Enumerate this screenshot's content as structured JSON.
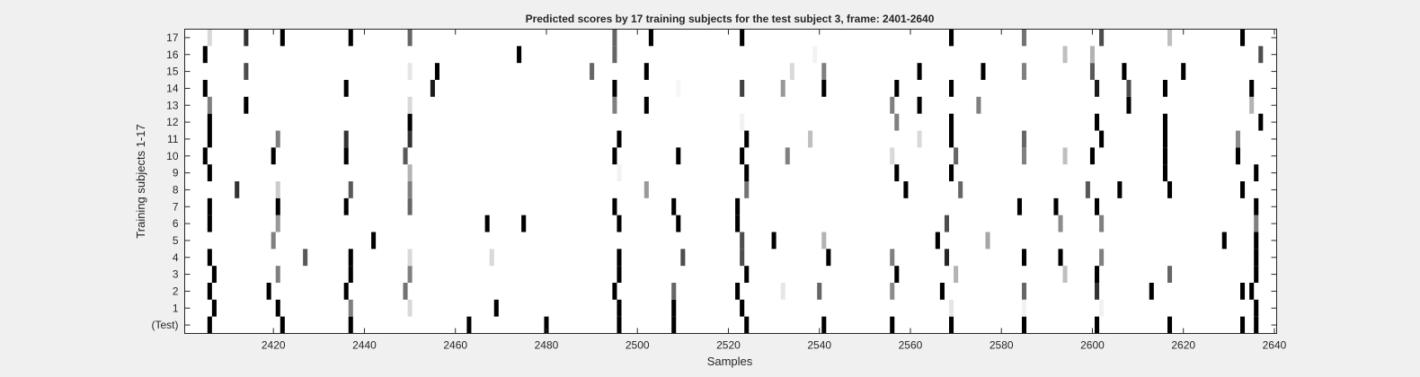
{
  "chart_data": {
    "type": "heatmap",
    "title": "Predicted scores by 17 training subjects for the test subject 3, frame: 2401-2640",
    "xlabel": "Samples",
    "ylabel": "Training subjects 1-17",
    "xlim": [
      2401,
      2640
    ],
    "xticks": [
      2420,
      2440,
      2460,
      2480,
      2500,
      2520,
      2540,
      2560,
      2580,
      2600,
      2620,
      2640
    ],
    "rows": [
      "(Test)",
      "1",
      "2",
      "3",
      "4",
      "5",
      "6",
      "7",
      "8",
      "9",
      "10",
      "11",
      "12",
      "13",
      "14",
      "15",
      "16",
      "17"
    ],
    "colormap": "gray",
    "background": "#ffffff",
    "cells": [
      {
        "row": "(Test)",
        "marks": [
          [
            2406,
            0
          ],
          [
            2422,
            0
          ],
          [
            2437,
            0
          ],
          [
            2463,
            0
          ],
          [
            2480,
            0
          ],
          [
            2496,
            0
          ],
          [
            2508,
            0
          ],
          [
            2524,
            0
          ],
          [
            2541,
            0
          ],
          [
            2556,
            0
          ],
          [
            2569,
            0
          ],
          [
            2585,
            0
          ],
          [
            2601,
            0
          ],
          [
            2617,
            0
          ],
          [
            2633,
            0
          ],
          [
            2636,
            0
          ]
        ]
      },
      {
        "row": "1",
        "marks": [
          [
            2407,
            0
          ],
          [
            2421,
            0
          ],
          [
            2437,
            0.5
          ],
          [
            2450,
            0.85
          ],
          [
            2469,
            0
          ],
          [
            2496,
            0
          ],
          [
            2508,
            0
          ],
          [
            2523,
            0
          ],
          [
            2569,
            0.9
          ],
          [
            2585,
            0.95
          ],
          [
            2602,
            0.95
          ],
          [
            2636,
            0
          ]
        ]
      },
      {
        "row": "2",
        "marks": [
          [
            2406,
            0
          ],
          [
            2419,
            0
          ],
          [
            2436,
            0
          ],
          [
            2449,
            0.45
          ],
          [
            2495,
            0
          ],
          [
            2508,
            0.4
          ],
          [
            2522,
            0
          ],
          [
            2532,
            0.9
          ],
          [
            2540,
            0.4
          ],
          [
            2556,
            0.55
          ],
          [
            2567,
            0
          ],
          [
            2585,
            0.4
          ],
          [
            2601,
            0.2
          ],
          [
            2613,
            0
          ],
          [
            2633,
            0
          ],
          [
            2635,
            0
          ]
        ]
      },
      {
        "row": "3",
        "marks": [
          [
            2407,
            0
          ],
          [
            2421,
            0.5
          ],
          [
            2437,
            0
          ],
          [
            2450,
            0.5
          ],
          [
            2496,
            0
          ],
          [
            2524,
            0
          ],
          [
            2557,
            0
          ],
          [
            2570,
            0.7
          ],
          [
            2594,
            0.75
          ],
          [
            2601,
            0
          ],
          [
            2617,
            0.4
          ],
          [
            2636,
            0
          ]
        ]
      },
      {
        "row": "4",
        "marks": [
          [
            2406,
            0
          ],
          [
            2427,
            0.35
          ],
          [
            2437,
            0
          ],
          [
            2450,
            0.85
          ],
          [
            2468,
            0.85
          ],
          [
            2496,
            0
          ],
          [
            2510,
            0.3
          ],
          [
            2523,
            0.3
          ],
          [
            2542,
            0
          ],
          [
            2556,
            0.5
          ],
          [
            2568,
            0.15
          ],
          [
            2585,
            0
          ],
          [
            2593,
            0
          ],
          [
            2602,
            0.5
          ],
          [
            2636,
            0
          ]
        ]
      },
      {
        "row": "5",
        "marks": [
          [
            2420,
            0.5
          ],
          [
            2442,
            0
          ],
          [
            2523,
            0.3
          ],
          [
            2530,
            0
          ],
          [
            2541,
            0.7
          ],
          [
            2566,
            0
          ],
          [
            2577,
            0.65
          ],
          [
            2629,
            0
          ],
          [
            2636,
            0
          ]
        ]
      },
      {
        "row": "6",
        "marks": [
          [
            2406,
            0
          ],
          [
            2421,
            0.6
          ],
          [
            2467,
            0
          ],
          [
            2475,
            0
          ],
          [
            2496,
            0
          ],
          [
            2509,
            0
          ],
          [
            2522,
            0
          ],
          [
            2568,
            0.3
          ],
          [
            2593,
            0.55
          ],
          [
            2602,
            0.5
          ],
          [
            2636,
            0.5
          ]
        ]
      },
      {
        "row": "7",
        "marks": [
          [
            2406,
            0
          ],
          [
            2421,
            0
          ],
          [
            2436,
            0
          ],
          [
            2450,
            0.4
          ],
          [
            2495,
            0
          ],
          [
            2508,
            0
          ],
          [
            2522,
            0
          ],
          [
            2584,
            0
          ],
          [
            2592,
            0
          ],
          [
            2601,
            0
          ],
          [
            2636,
            0
          ]
        ]
      },
      {
        "row": "8",
        "marks": [
          [
            2412,
            0.2
          ],
          [
            2421,
            0.8
          ],
          [
            2437,
            0.35
          ],
          [
            2450,
            0.5
          ],
          [
            2502,
            0.6
          ],
          [
            2524,
            0.45
          ],
          [
            2559,
            0
          ],
          [
            2571,
            0.4
          ],
          [
            2599,
            0.35
          ],
          [
            2606,
            0
          ],
          [
            2617,
            0
          ],
          [
            2633,
            0
          ]
        ]
      },
      {
        "row": "9",
        "marks": [
          [
            2406,
            0
          ],
          [
            2450,
            0.7
          ],
          [
            2496,
            0.95
          ],
          [
            2524,
            0
          ],
          [
            2557,
            0
          ],
          [
            2569,
            0
          ],
          [
            2616,
            0
          ],
          [
            2636,
            0
          ]
        ]
      },
      {
        "row": "10",
        "marks": [
          [
            2405,
            0
          ],
          [
            2420,
            0
          ],
          [
            2436,
            0
          ],
          [
            2449,
            0.35
          ],
          [
            2495,
            0
          ],
          [
            2509,
            0
          ],
          [
            2523,
            0
          ],
          [
            2533,
            0.5
          ],
          [
            2556,
            0.85
          ],
          [
            2570,
            0.4
          ],
          [
            2585,
            0.5
          ],
          [
            2594,
            0.75
          ],
          [
            2600,
            0
          ],
          [
            2616,
            0
          ],
          [
            2632,
            0
          ]
        ]
      },
      {
        "row": "11",
        "marks": [
          [
            2406,
            0
          ],
          [
            2421,
            0.5
          ],
          [
            2436,
            0.2
          ],
          [
            2450,
            0.2
          ],
          [
            2496,
            0
          ],
          [
            2524,
            0
          ],
          [
            2538,
            0.75
          ],
          [
            2562,
            0.85
          ],
          [
            2569,
            0
          ],
          [
            2585,
            0.4
          ],
          [
            2602,
            0
          ],
          [
            2616,
            0
          ],
          [
            2632,
            0.55
          ]
        ]
      },
      {
        "row": "12",
        "marks": [
          [
            2406,
            0
          ],
          [
            2450,
            0
          ],
          [
            2523,
            0.95
          ],
          [
            2557,
            0.5
          ],
          [
            2569,
            0
          ],
          [
            2601,
            0
          ],
          [
            2616,
            0
          ],
          [
            2637,
            0
          ]
        ]
      },
      {
        "row": "13",
        "marks": [
          [
            2406,
            0.5
          ],
          [
            2414,
            0
          ],
          [
            2450,
            0.85
          ],
          [
            2495,
            0.5
          ],
          [
            2502,
            0
          ],
          [
            2556,
            0.5
          ],
          [
            2562,
            0
          ],
          [
            2575,
            0.5
          ],
          [
            2608,
            0
          ],
          [
            2635,
            0.7
          ]
        ]
      },
      {
        "row": "14",
        "marks": [
          [
            2405,
            0
          ],
          [
            2436,
            0
          ],
          [
            2455,
            0.1
          ],
          [
            2495,
            0
          ],
          [
            2509,
            0.97
          ],
          [
            2523,
            0.25
          ],
          [
            2532,
            0.6
          ],
          [
            2541,
            0
          ],
          [
            2557,
            0
          ],
          [
            2569,
            0
          ],
          [
            2601,
            0.1
          ],
          [
            2608,
            0.3
          ],
          [
            2616,
            0
          ],
          [
            2635,
            0
          ]
        ]
      },
      {
        "row": "15",
        "marks": [
          [
            2414,
            0.3
          ],
          [
            2450,
            0.9
          ],
          [
            2456,
            0
          ],
          [
            2490,
            0.4
          ],
          [
            2502,
            0
          ],
          [
            2534,
            0.85
          ],
          [
            2541,
            0.5
          ],
          [
            2562,
            0
          ],
          [
            2576,
            0
          ],
          [
            2585,
            0.5
          ],
          [
            2600,
            0.35
          ],
          [
            2607,
            0
          ],
          [
            2620,
            0
          ]
        ]
      },
      {
        "row": "16",
        "marks": [
          [
            2405,
            0
          ],
          [
            2474,
            0
          ],
          [
            2495,
            0.4
          ],
          [
            2539,
            0.95
          ],
          [
            2594,
            0.75
          ],
          [
            2600,
            0.7
          ],
          [
            2637,
            0.3
          ]
        ]
      },
      {
        "row": "17",
        "marks": [
          [
            2406,
            0.85
          ],
          [
            2414,
            0.2
          ],
          [
            2422,
            0
          ],
          [
            2437,
            0
          ],
          [
            2450,
            0.4
          ],
          [
            2495,
            0.4
          ],
          [
            2503,
            0
          ],
          [
            2523,
            0
          ],
          [
            2569,
            0
          ],
          [
            2585,
            0.45
          ],
          [
            2602,
            0.3
          ],
          [
            2617,
            0.75
          ],
          [
            2633,
            0
          ]
        ]
      }
    ]
  }
}
